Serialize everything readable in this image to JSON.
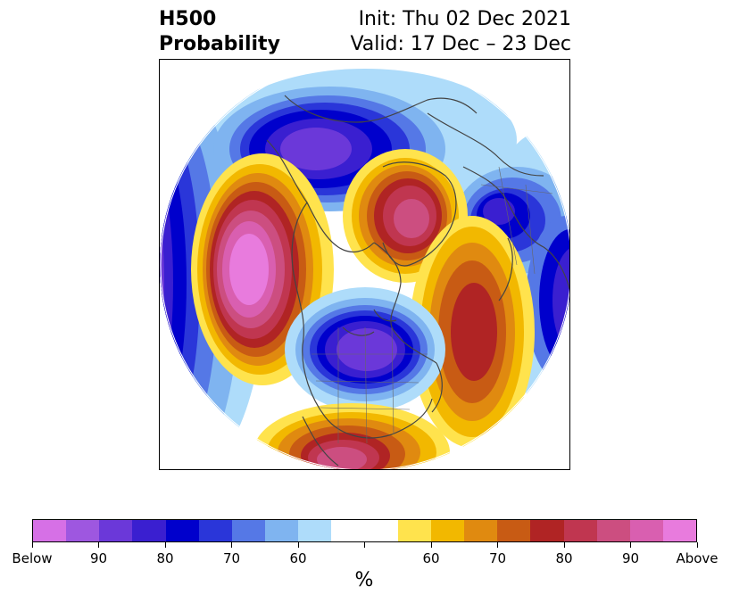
{
  "title": {
    "left_line1": "H500",
    "left_line2": "Probability",
    "right_line1": "Init: Thu 02 Dec 2021",
    "right_line2": "Valid: 17 Dec – 23 Dec"
  },
  "colorbar": {
    "colors": [
      "#d670e6",
      "#9e57e0",
      "#6b38d9",
      "#3a1fd0",
      "#0000cc",
      "#2a36d9",
      "#5578e6",
      "#7fb4f0",
      "#aedcfa",
      "#ffffff",
      "#ffffff",
      "#ffe34d",
      "#f2b800",
      "#e08a10",
      "#c85b14",
      "#b02424",
      "#c03650",
      "#cc4e80",
      "#d95fb0",
      "#e87bdd"
    ],
    "tick_labels": [
      "Below",
      "90",
      "80",
      "70",
      "60",
      "",
      "60",
      "70",
      "80",
      "90",
      "Above"
    ],
    "unit_label": "%"
  },
  "map": {
    "projection": "north-polar-stereographic",
    "features": [
      "below-normal-anomaly-alaska",
      "above-normal-anomaly-north-pacific",
      "above-normal-anomaly-north-atlantic",
      "below-normal-anomaly-great-lakes",
      "above-normal-anomaly-greenland",
      "below-normal-anomaly-scandinavia",
      "above-normal-anomaly-mexico"
    ]
  }
}
